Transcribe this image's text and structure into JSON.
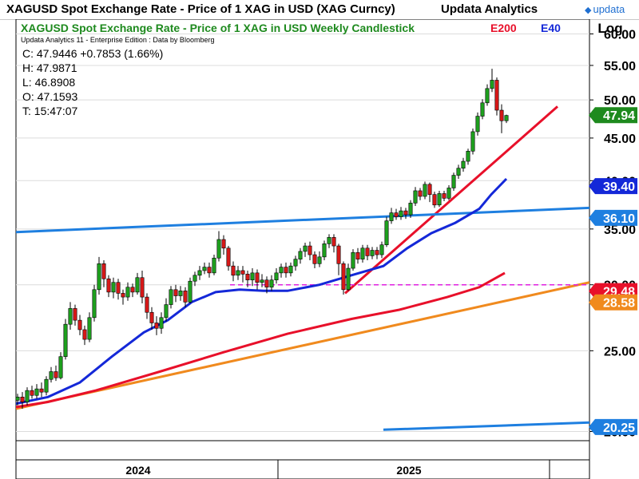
{
  "header": {
    "title": "XAGUSD Spot Exchange Rate - Price of 1 XAG in USD (XAG Curncy)",
    "brand": "Updata Analytics",
    "logo_text": "updata"
  },
  "chart_data": {
    "type": "candlestick",
    "title": "XAGUSD Spot Exchange Rate - Price of 1 XAG in USD Weekly Candlestick",
    "subtitle": "Updata Analytics 11 - Enterprise Edition : Data by Bloomberg",
    "scale": "log",
    "scale_label": "Log",
    "ylim": [
      19.5,
      62.5
    ],
    "y_ticks": [
      20,
      25,
      30,
      35,
      40,
      45,
      50,
      55,
      60
    ],
    "y_tick_labels": [
      "20.00",
      "25.00",
      "30.00",
      "35.00",
      "40.00",
      "45.00",
      "50.00",
      "55.00",
      "60.00"
    ],
    "x_labels": [
      "2024",
      "2025"
    ],
    "ohlc": {
      "close": "C: 47.9446  +0.7853 (1.66%)",
      "high": "H: 47.9871",
      "low": "L: 46.8908",
      "open": "O: 47.1593",
      "time": "T: 15:47:07"
    },
    "legend": [
      {
        "name": "E200",
        "color": "#e8102a"
      },
      {
        "name": "E40",
        "color": "#1428d8"
      }
    ],
    "price_labels": [
      {
        "value": "47.94",
        "color": "#1e8a1e"
      },
      {
        "value": "39.40",
        "color": "#1428d8"
      },
      {
        "value": "36.10",
        "color": "#1e7fe0"
      },
      {
        "value": "29.48",
        "color": "#e8102a"
      },
      {
        "value": "28.58",
        "color": "#f08a1e"
      },
      {
        "value": "20.25",
        "color": "#1e7fe0"
      }
    ],
    "series": [
      {
        "name": "E200",
        "color": "#e8102a",
        "points": [
          [
            20,
            21.4
          ],
          [
            60,
            21.7
          ],
          [
            120,
            22.4
          ],
          [
            200,
            23.6
          ],
          [
            280,
            24.9
          ],
          [
            360,
            26.2
          ],
          [
            440,
            27.3
          ],
          [
            500,
            28.0
          ],
          [
            560,
            29.0
          ],
          [
            600,
            29.8
          ],
          [
            632,
            31.0
          ]
        ]
      },
      {
        "name": "E40",
        "color": "#1428d8",
        "points": [
          [
            20,
            21.6
          ],
          [
            60,
            22.0
          ],
          [
            100,
            22.9
          ],
          [
            140,
            24.6
          ],
          [
            180,
            26.3
          ],
          [
            210,
            27.2
          ],
          [
            240,
            28.6
          ],
          [
            270,
            29.4
          ],
          [
            300,
            29.6
          ],
          [
            330,
            29.5
          ],
          [
            360,
            29.5
          ],
          [
            400,
            30.0
          ],
          [
            440,
            30.8
          ],
          [
            480,
            31.6
          ],
          [
            510,
            33.2
          ],
          [
            540,
            34.6
          ],
          [
            570,
            35.6
          ],
          [
            600,
            37.0
          ],
          [
            615,
            38.5
          ],
          [
            634,
            40.2
          ]
        ]
      }
    ],
    "trendlines": [
      {
        "color": "#e8102a",
        "points": [
          [
            432,
            29.3
          ],
          [
            698,
            49.1
          ]
        ]
      },
      {
        "color": "#1e7fe0",
        "points": [
          [
            20,
            34.7
          ],
          [
            738,
            37.1
          ]
        ]
      },
      {
        "color": "#f08a1e",
        "points": [
          [
            20,
            21.3
          ],
          [
            738,
            30.2
          ]
        ]
      },
      {
        "color": "#1e7fe0",
        "points": [
          [
            480,
            20.1
          ],
          [
            738,
            20.5
          ]
        ]
      },
      {
        "color": "#e020e0",
        "dashed": true,
        "points": [
          [
            288,
            30.0
          ],
          [
            738,
            30.0
          ]
        ]
      }
    ],
    "candles": [
      [
        22,
        21.8,
        22.0,
        21.5,
        22.2
      ],
      [
        28,
        22.0,
        21.7,
        21.3,
        22.3
      ],
      [
        34,
        21.7,
        22.4,
        21.5,
        22.6
      ],
      [
        40,
        22.4,
        22.1,
        21.9,
        22.7
      ],
      [
        46,
        22.1,
        22.5,
        21.9,
        22.8
      ],
      [
        52,
        22.5,
        22.3,
        22.0,
        22.9
      ],
      [
        58,
        22.3,
        23.1,
        22.1,
        23.3
      ],
      [
        64,
        23.1,
        23.6,
        22.9,
        23.9
      ],
      [
        70,
        23.6,
        23.2,
        23.0,
        24.0
      ],
      [
        76,
        23.2,
        24.6,
        23.1,
        24.9
      ],
      [
        82,
        24.6,
        26.9,
        24.4,
        27.3
      ],
      [
        88,
        26.9,
        28.1,
        26.5,
        28.6
      ],
      [
        94,
        28.1,
        27.2,
        26.8,
        28.4
      ],
      [
        100,
        27.2,
        26.5,
        26.1,
        27.6
      ],
      [
        106,
        26.5,
        25.8,
        25.4,
        26.8
      ],
      [
        112,
        25.8,
        27.4,
        25.6,
        27.8
      ],
      [
        118,
        27.4,
        29.6,
        27.1,
        30.0
      ],
      [
        124,
        29.6,
        31.8,
        29.2,
        32.4
      ],
      [
        130,
        31.8,
        30.5,
        29.8,
        32.1
      ],
      [
        136,
        30.5,
        29.4,
        29.0,
        30.8
      ],
      [
        142,
        29.4,
        30.2,
        28.9,
        30.6
      ],
      [
        148,
        30.2,
        29.3,
        28.8,
        30.5
      ],
      [
        154,
        29.3,
        29.0,
        28.4,
        29.6
      ],
      [
        160,
        29.0,
        29.8,
        28.7,
        30.2
      ],
      [
        166,
        29.8,
        29.4,
        29.0,
        30.1
      ],
      [
        172,
        29.4,
        30.6,
        29.2,
        31.0
      ],
      [
        178,
        30.6,
        29.0,
        28.5,
        31.2
      ],
      [
        184,
        29.0,
        27.8,
        27.3,
        29.3
      ],
      [
        190,
        27.8,
        27.0,
        26.5,
        28.2
      ],
      [
        196,
        27.0,
        26.6,
        26.1,
        27.5
      ],
      [
        202,
        26.6,
        27.4,
        26.2,
        27.8
      ],
      [
        208,
        27.4,
        28.4,
        27.1,
        28.9
      ],
      [
        214,
        28.4,
        29.6,
        28.1,
        29.9
      ],
      [
        220,
        29.6,
        29.1,
        28.6,
        30.0
      ],
      [
        226,
        29.1,
        29.5,
        28.7,
        29.9
      ],
      [
        232,
        29.5,
        28.6,
        28.2,
        29.8
      ],
      [
        238,
        28.6,
        30.3,
        28.5,
        30.6
      ],
      [
        244,
        30.3,
        30.8,
        29.9,
        31.1
      ],
      [
        250,
        30.8,
        31.2,
        30.4,
        31.6
      ],
      [
        256,
        31.2,
        31.5,
        30.9,
        31.9
      ],
      [
        262,
        31.5,
        31.0,
        30.6,
        31.9
      ],
      [
        268,
        31.0,
        32.3,
        30.8,
        32.6
      ],
      [
        274,
        32.3,
        34.0,
        32.0,
        34.8
      ],
      [
        280,
        34.0,
        33.2,
        32.6,
        34.4
      ],
      [
        286,
        33.2,
        31.6,
        31.2,
        33.4
      ],
      [
        292,
        31.6,
        30.8,
        30.3,
        32.0
      ],
      [
        298,
        30.8,
        31.2,
        30.4,
        31.6
      ],
      [
        304,
        31.2,
        30.9,
        30.2,
        31.6
      ],
      [
        310,
        30.9,
        30.4,
        29.8,
        31.2
      ],
      [
        316,
        30.4,
        31.0,
        29.9,
        31.4
      ],
      [
        322,
        31.0,
        30.2,
        29.6,
        31.3
      ],
      [
        328,
        30.2,
        30.4,
        29.8,
        30.9
      ],
      [
        334,
        30.4,
        29.8,
        29.3,
        30.7
      ],
      [
        340,
        29.8,
        30.4,
        29.5,
        30.8
      ],
      [
        346,
        30.4,
        31.0,
        30.1,
        31.4
      ],
      [
        352,
        31.0,
        31.5,
        30.6,
        31.8
      ],
      [
        358,
        31.5,
        31.0,
        30.6,
        31.9
      ],
      [
        364,
        31.0,
        31.6,
        30.7,
        31.9
      ],
      [
        370,
        31.6,
        32.2,
        31.2,
        32.5
      ],
      [
        376,
        32.2,
        32.9,
        31.8,
        33.2
      ],
      [
        382,
        32.9,
        33.4,
        32.4,
        33.7
      ],
      [
        388,
        33.4,
        32.6,
        32.1,
        33.8
      ],
      [
        394,
        32.6,
        31.8,
        31.4,
        32.9
      ],
      [
        400,
        31.8,
        32.4,
        31.5,
        32.9
      ],
      [
        406,
        32.4,
        33.6,
        32.1,
        33.9
      ],
      [
        412,
        33.6,
        34.2,
        33.2,
        34.5
      ],
      [
        418,
        34.2,
        33.4,
        32.8,
        34.5
      ],
      [
        424,
        33.4,
        31.8,
        30.8,
        33.6
      ],
      [
        430,
        31.8,
        29.6,
        29.2,
        32.0
      ],
      [
        436,
        29.6,
        31.4,
        29.5,
        31.8
      ],
      [
        442,
        31.4,
        32.8,
        31.2,
        33.1
      ],
      [
        448,
        32.8,
        32.2,
        31.8,
        33.2
      ],
      [
        454,
        32.2,
        33.2,
        31.9,
        33.5
      ],
      [
        460,
        33.2,
        32.5,
        32.1,
        33.5
      ],
      [
        466,
        32.5,
        33.0,
        32.2,
        33.3
      ],
      [
        472,
        33.0,
        32.6,
        32.2,
        33.3
      ],
      [
        478,
        32.6,
        33.5,
        32.3,
        33.8
      ],
      [
        484,
        33.5,
        35.8,
        33.3,
        36.2
      ],
      [
        490,
        35.8,
        36.6,
        35.5,
        37.1
      ],
      [
        496,
        36.6,
        36.2,
        35.9,
        37.0
      ],
      [
        502,
        36.2,
        36.8,
        35.9,
        37.2
      ],
      [
        508,
        36.8,
        36.4,
        36.0,
        37.1
      ],
      [
        514,
        36.4,
        37.6,
        36.1,
        37.9
      ],
      [
        520,
        37.6,
        38.9,
        37.3,
        39.3
      ],
      [
        526,
        38.9,
        38.3,
        37.9,
        39.2
      ],
      [
        532,
        38.3,
        39.6,
        38.0,
        39.9
      ],
      [
        538,
        39.6,
        38.5,
        37.7,
        39.8
      ],
      [
        544,
        38.5,
        37.4,
        37.1,
        38.8
      ],
      [
        550,
        37.4,
        38.6,
        37.2,
        38.9
      ],
      [
        556,
        38.6,
        38.1,
        37.8,
        38.9
      ],
      [
        562,
        38.1,
        39.2,
        37.9,
        39.5
      ],
      [
        568,
        39.2,
        40.6,
        38.9,
        40.9
      ],
      [
        574,
        40.6,
        41.4,
        40.2,
        41.8
      ],
      [
        580,
        41.4,
        42.2,
        41.0,
        42.6
      ],
      [
        586,
        42.2,
        43.4,
        41.8,
        43.7
      ],
      [
        592,
        43.4,
        45.8,
        43.0,
        46.2
      ],
      [
        598,
        45.8,
        47.8,
        45.3,
        48.3
      ],
      [
        604,
        47.8,
        49.6,
        47.4,
        50.1
      ],
      [
        610,
        49.6,
        51.6,
        49.2,
        52.2
      ],
      [
        616,
        51.6,
        52.8,
        51.1,
        54.5
      ],
      [
        622,
        52.8,
        48.6,
        47.9,
        53.2
      ],
      [
        628,
        48.6,
        47.2,
        45.6,
        49.4
      ],
      [
        634,
        47.2,
        47.9,
        46.9,
        48.0
      ]
    ]
  }
}
